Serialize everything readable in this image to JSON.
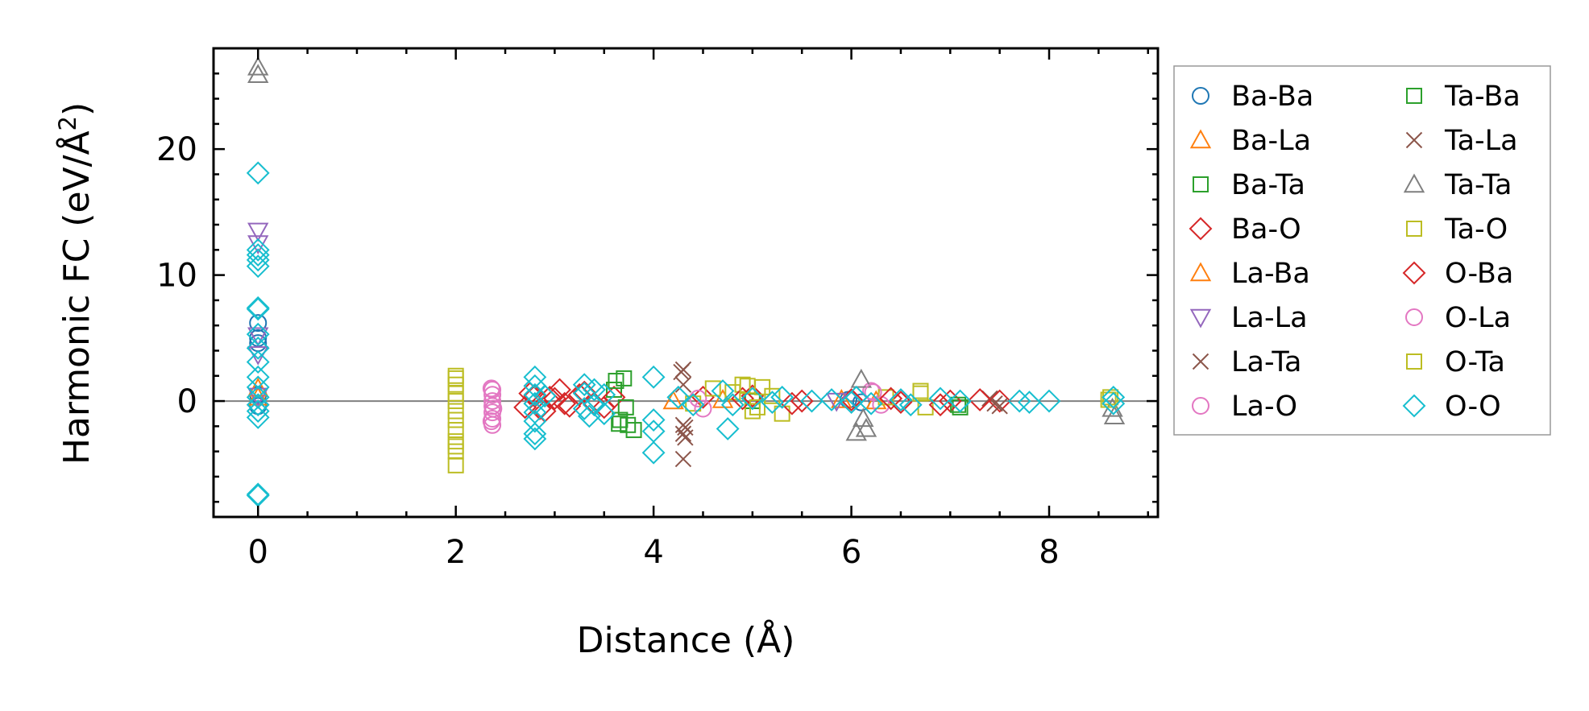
{
  "chart_data": {
    "type": "scatter",
    "xlabel": "Distance (Å)",
    "ylabel_main": "Harmonic FC (eV/Å",
    "ylabel_sup": "2",
    "ylabel_close": ")",
    "xlim": [
      -0.45,
      9.1
    ],
    "ylim": [
      -9.2,
      28.0
    ],
    "xticks": [
      0,
      2,
      4,
      6,
      8
    ],
    "xtick_labels": [
      "0",
      "2",
      "4",
      "6",
      "8"
    ],
    "yticks": [
      0,
      10,
      20
    ],
    "ytick_labels": [
      "0",
      "10",
      "20"
    ],
    "zero_line": true,
    "grid": false,
    "legend_position": "outside-right",
    "series": [
      {
        "name": "Ba-Ba",
        "marker": "circle",
        "color": "#1f77b4",
        "points": [
          [
            0,
            0.5
          ],
          [
            0,
            5.0
          ],
          [
            0,
            6.2
          ],
          [
            0,
            4.6
          ],
          [
            0,
            -0.4
          ],
          [
            5.97,
            0.1
          ],
          [
            6.1,
            -0.1
          ]
        ]
      },
      {
        "name": "Ba-La",
        "marker": "triangle-up",
        "color": "#ff7f0e",
        "points": [
          [
            0,
            0.3
          ],
          [
            4.2,
            0.0
          ],
          [
            5.9,
            0.1
          ]
        ]
      },
      {
        "name": "Ba-Ta",
        "marker": "square",
        "color": "#2ca02c",
        "points": [
          [
            3.6,
            0.9
          ],
          [
            3.66,
            -1.5
          ],
          [
            3.7,
            1.8
          ],
          [
            3.74,
            -1.9
          ],
          [
            3.8,
            -2.3
          ],
          [
            5.0,
            0.0
          ],
          [
            7.1,
            -0.5
          ]
        ]
      },
      {
        "name": "Ba-O",
        "marker": "diamond",
        "color": "#d62728",
        "points": [
          [
            2.75,
            0.6
          ],
          [
            2.85,
            -0.6
          ],
          [
            2.95,
            0.3
          ],
          [
            3.05,
            0.9
          ],
          [
            3.15,
            -0.4
          ],
          [
            3.25,
            0.5
          ],
          [
            3.4,
            -0.2
          ],
          [
            3.6,
            0.3
          ],
          [
            4.5,
            0.3
          ],
          [
            5.0,
            0.4
          ],
          [
            5.5,
            0.0
          ],
          [
            6.0,
            0.1
          ],
          [
            6.5,
            -0.1
          ],
          [
            7.0,
            0.0
          ],
          [
            7.5,
            0.0
          ]
        ]
      },
      {
        "name": "La-Ba",
        "marker": "triangle-up",
        "color": "#ff7f0e",
        "points": [
          [
            0,
            1.0
          ],
          [
            4.7,
            0.1
          ],
          [
            6.25,
            0.0
          ]
        ]
      },
      {
        "name": "La-La",
        "marker": "triangle-down",
        "color": "#9467bd",
        "points": [
          [
            0,
            13.5
          ],
          [
            0,
            12.5
          ],
          [
            0,
            5.2
          ],
          [
            0,
            3.7
          ],
          [
            0,
            0.4
          ],
          [
            5.85,
            0.0
          ]
        ]
      },
      {
        "name": "La-Ta",
        "marker": "x",
        "color": "#8c564b",
        "points": [
          [
            4.3,
            2.5
          ],
          [
            4.3,
            1.3
          ],
          [
            4.3,
            -1.9
          ],
          [
            4.3,
            -2.6
          ],
          [
            4.3,
            -4.6
          ],
          [
            7.5,
            -0.4
          ],
          [
            7.4,
            0.2
          ]
        ]
      },
      {
        "name": "La-O",
        "marker": "circle",
        "color": "#e377c2",
        "points": [
          [
            2.37,
            0.9
          ],
          [
            2.37,
            0.5
          ],
          [
            2.37,
            0.0
          ],
          [
            2.37,
            -0.4
          ],
          [
            2.37,
            -0.9
          ],
          [
            2.37,
            -1.4
          ],
          [
            2.37,
            -1.9
          ],
          [
            4.45,
            0.2
          ],
          [
            6.2,
            0.8
          ],
          [
            6.3,
            -0.3
          ]
        ]
      },
      {
        "name": "Ta-Ba",
        "marker": "square",
        "color": "#2ca02c",
        "points": [
          [
            3.62,
            1.6
          ],
          [
            3.72,
            -0.5
          ],
          [
            3.65,
            -1.8
          ],
          [
            7.08,
            -0.3
          ]
        ]
      },
      {
        "name": "Ta-La",
        "marker": "x",
        "color": "#8c564b",
        "points": [
          [
            4.28,
            2.3
          ],
          [
            4.32,
            -2.1
          ],
          [
            4.32,
            -2.9
          ],
          [
            7.45,
            -0.2
          ]
        ]
      },
      {
        "name": "Ta-Ta",
        "marker": "triangle-up",
        "color": "#7f7f7f",
        "points": [
          [
            0,
            26.5
          ],
          [
            0,
            25.9
          ],
          [
            6.05,
            -2.5
          ],
          [
            6.1,
            1.7
          ],
          [
            6.12,
            -1.4
          ],
          [
            6.15,
            -2.2
          ],
          [
            8.66,
            -1.2
          ],
          [
            8.64,
            -0.6
          ]
        ]
      },
      {
        "name": "Ta-O",
        "marker": "square",
        "color": "#bcbd22",
        "points": [
          [
            2.0,
            1.8
          ],
          [
            2.0,
            1.3
          ],
          [
            2.0,
            0.6
          ],
          [
            2.0,
            0.0
          ],
          [
            2.0,
            -0.8
          ],
          [
            2.0,
            -1.5
          ],
          [
            2.0,
            -2.3
          ],
          [
            2.0,
            -3.2
          ],
          [
            2.0,
            -4.0
          ],
          [
            2.0,
            -5.1
          ],
          [
            4.4,
            -0.2
          ],
          [
            4.6,
            1.0
          ],
          [
            4.8,
            0.7
          ],
          [
            4.9,
            1.3
          ],
          [
            5.0,
            -0.8
          ],
          [
            5.1,
            1.1
          ],
          [
            5.2,
            0.4
          ],
          [
            5.3,
            -1.0
          ],
          [
            6.35,
            0.3
          ],
          [
            6.7,
            0.6
          ],
          [
            6.75,
            -0.5
          ],
          [
            8.6,
            0.1
          ]
        ]
      },
      {
        "name": "O-Ba",
        "marker": "diamond",
        "color": "#d62728",
        "points": [
          [
            2.7,
            -0.5
          ],
          [
            2.8,
            0.4
          ],
          [
            2.9,
            -0.8
          ],
          [
            3.0,
            0.2
          ],
          [
            3.1,
            -0.2
          ],
          [
            3.3,
            0.7
          ],
          [
            3.5,
            -0.5
          ],
          [
            4.9,
            0.2
          ],
          [
            5.4,
            -0.2
          ],
          [
            6.4,
            0.2
          ],
          [
            6.9,
            -0.3
          ],
          [
            7.3,
            0.1
          ]
        ]
      },
      {
        "name": "O-La",
        "marker": "circle",
        "color": "#e377c2",
        "points": [
          [
            2.36,
            1.0
          ],
          [
            2.38,
            -0.6
          ],
          [
            2.36,
            -1.6
          ],
          [
            4.5,
            -0.6
          ],
          [
            6.22,
            0.7
          ]
        ]
      },
      {
        "name": "O-Ta",
        "marker": "square",
        "color": "#bcbd22",
        "points": [
          [
            2.0,
            2.0
          ],
          [
            2.0,
            -3.6
          ],
          [
            4.95,
            1.2
          ],
          [
            5.05,
            -0.5
          ],
          [
            6.7,
            0.8
          ],
          [
            8.62,
            0.3
          ]
        ]
      },
      {
        "name": "O-O",
        "marker": "diamond",
        "color": "#17becf",
        "points": [
          [
            0,
            18.1
          ],
          [
            0,
            12.0
          ],
          [
            0,
            11.6
          ],
          [
            0,
            11.2
          ],
          [
            0,
            10.7
          ],
          [
            0,
            7.4
          ],
          [
            0,
            7.3
          ],
          [
            0,
            5.3
          ],
          [
            0,
            4.2
          ],
          [
            0,
            3.1
          ],
          [
            0,
            1.9
          ],
          [
            0,
            1.1
          ],
          [
            0,
            0.3
          ],
          [
            0,
            -0.3
          ],
          [
            0,
            -0.8
          ],
          [
            0,
            -1.3
          ],
          [
            0,
            -7.4
          ],
          [
            0,
            -7.5
          ],
          [
            2.8,
            1.9
          ],
          [
            2.8,
            1.2
          ],
          [
            2.8,
            0.5
          ],
          [
            2.8,
            -0.2
          ],
          [
            2.8,
            -0.9
          ],
          [
            2.8,
            -1.6
          ],
          [
            2.8,
            -2.6
          ],
          [
            2.8,
            -3.0
          ],
          [
            2.9,
            0.4
          ],
          [
            3.3,
            1.3
          ],
          [
            3.3,
            0.6
          ],
          [
            3.3,
            -0.6
          ],
          [
            3.35,
            -1.2
          ],
          [
            3.4,
            0.9
          ],
          [
            3.4,
            -0.3
          ],
          [
            3.5,
            0.5
          ],
          [
            3.5,
            -1.0
          ],
          [
            4.0,
            1.9
          ],
          [
            4.0,
            -1.5
          ],
          [
            4.0,
            -2.4
          ],
          [
            4.0,
            -4.1
          ],
          [
            4.25,
            0.3
          ],
          [
            4.4,
            -0.3
          ],
          [
            4.7,
            0.8
          ],
          [
            4.75,
            -2.2
          ],
          [
            4.8,
            -0.3
          ],
          [
            5.0,
            0.2
          ],
          [
            5.2,
            -0.1
          ],
          [
            5.3,
            0.3
          ],
          [
            5.6,
            0.0
          ],
          [
            5.8,
            0.1
          ],
          [
            6.0,
            -0.1
          ],
          [
            6.05,
            0.3
          ],
          [
            6.2,
            -0.2
          ],
          [
            6.5,
            0.1
          ],
          [
            6.6,
            -0.3
          ],
          [
            6.9,
            0.2
          ],
          [
            7.1,
            0.0
          ],
          [
            7.7,
            0.0
          ],
          [
            7.8,
            -0.1
          ],
          [
            8.0,
            0.0
          ],
          [
            8.65,
            0.3
          ],
          [
            8.65,
            -0.2
          ]
        ]
      }
    ]
  }
}
